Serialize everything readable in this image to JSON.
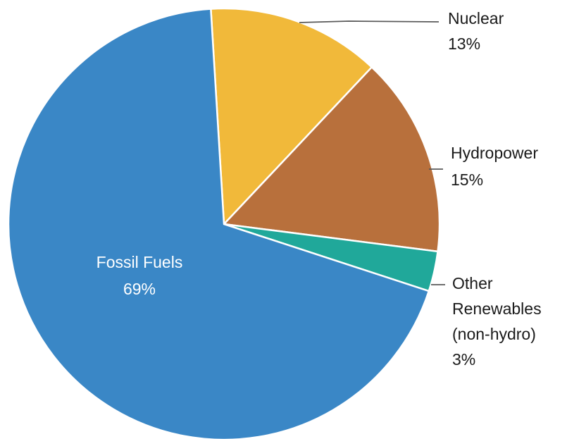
{
  "chart_data": {
    "type": "pie",
    "title": "",
    "slices": [
      {
        "label": "Nuclear",
        "value_label": "13%",
        "value": 13,
        "color": "#f1b93a"
      },
      {
        "label": "Hydropower",
        "value_label": "15%",
        "value": 15,
        "color": "#b8703c"
      },
      {
        "label": "Other Renewables (non-hydro)",
        "label_lines": [
          "Other",
          "Renewables",
          "(non-hydro)"
        ],
        "value_label": "3%",
        "value": 3,
        "color": "#20a89a"
      },
      {
        "label": "Fossil Fuels",
        "value_label": "69%",
        "value": 69,
        "color": "#3a87c6"
      }
    ]
  }
}
